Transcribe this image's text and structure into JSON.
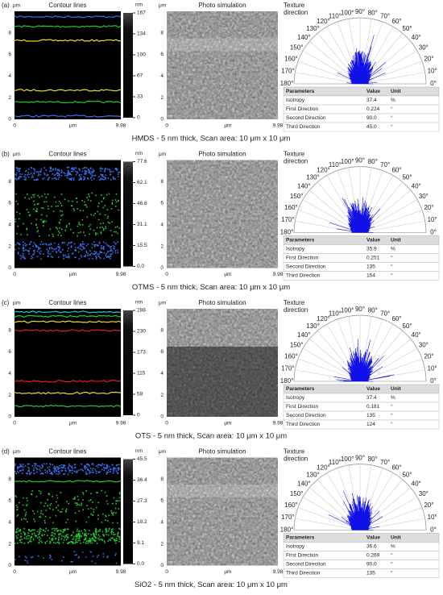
{
  "common": {
    "contour_title": "Contour lines",
    "photo_title": "Photo simulation",
    "texture_title": [
      "Texture",
      "direction"
    ],
    "axis_unit": "μm",
    "colorbar_unit": "nm",
    "x_ticks": [
      "0",
      "μm",
      "9.98"
    ],
    "y_ticks": [
      "0",
      "2",
      "4",
      "6",
      "8"
    ],
    "angles": [
      "0°",
      "10°",
      "20°",
      "30°",
      "40°",
      "50°",
      "60°",
      "70°",
      "80°",
      "90°",
      "100°",
      "110°",
      "120°",
      "130°",
      "140°",
      "150°",
      "160°",
      "170°",
      "180°"
    ],
    "table_header": [
      "Parameters",
      "Value",
      "Unit"
    ]
  },
  "panels": [
    {
      "label": "(a)",
      "colorbar_ticks": [
        "167",
        "134",
        "100",
        "67",
        "33",
        "0"
      ],
      "table": [
        [
          "Isotropy",
          "37.4",
          "%"
        ],
        [
          "First Direction",
          "0.224",
          "°"
        ],
        [
          "Second Direction",
          "90.0",
          "°"
        ],
        [
          "Third Direction",
          "45.0",
          "°"
        ]
      ],
      "caption": "HMDS - 5 nm thick, Scan area: 10 μm x 10 μm"
    },
    {
      "label": "(b)",
      "colorbar_ticks": [
        "77.6",
        "62.1",
        "46.6",
        "31.1",
        "15.5",
        "0.0"
      ],
      "table": [
        [
          "Isotropy",
          "35.9",
          "%"
        ],
        [
          "First Direction",
          "0.251",
          "°"
        ],
        [
          "Second Direction",
          "135",
          "°"
        ],
        [
          "Third Direction",
          "154",
          "°"
        ]
      ],
      "caption": "OTMS - 5 nm thick, Scan area: 10 μm x 10 μm"
    },
    {
      "label": "(c)",
      "colorbar_ticks": [
        "288",
        "230",
        "173",
        "115",
        "58",
        "0"
      ],
      "table": [
        [
          "Isotropy",
          "37.4",
          "%"
        ],
        [
          "First Direction",
          "0.181",
          "°"
        ],
        [
          "Second Direction",
          "135",
          "°"
        ],
        [
          "Third Direction",
          "124",
          "°"
        ]
      ],
      "caption": "OTS - 5 nm thick, Scan area: 10 μm x 10 μm"
    },
    {
      "label": "(d)",
      "colorbar_ticks": [
        "45.5",
        "36.4",
        "27.3",
        "18.2",
        "9.1",
        "0.0"
      ],
      "table": [
        [
          "Isotropy",
          "36.6",
          "%"
        ],
        [
          "First Direction",
          "0.269",
          "°"
        ],
        [
          "Second Direction",
          "90.0",
          "°"
        ],
        [
          "Third Direction",
          "135",
          "°"
        ]
      ],
      "caption": "SiO2 - 5 nm thick, Scan area: 10 μm x 10 μm"
    }
  ]
}
